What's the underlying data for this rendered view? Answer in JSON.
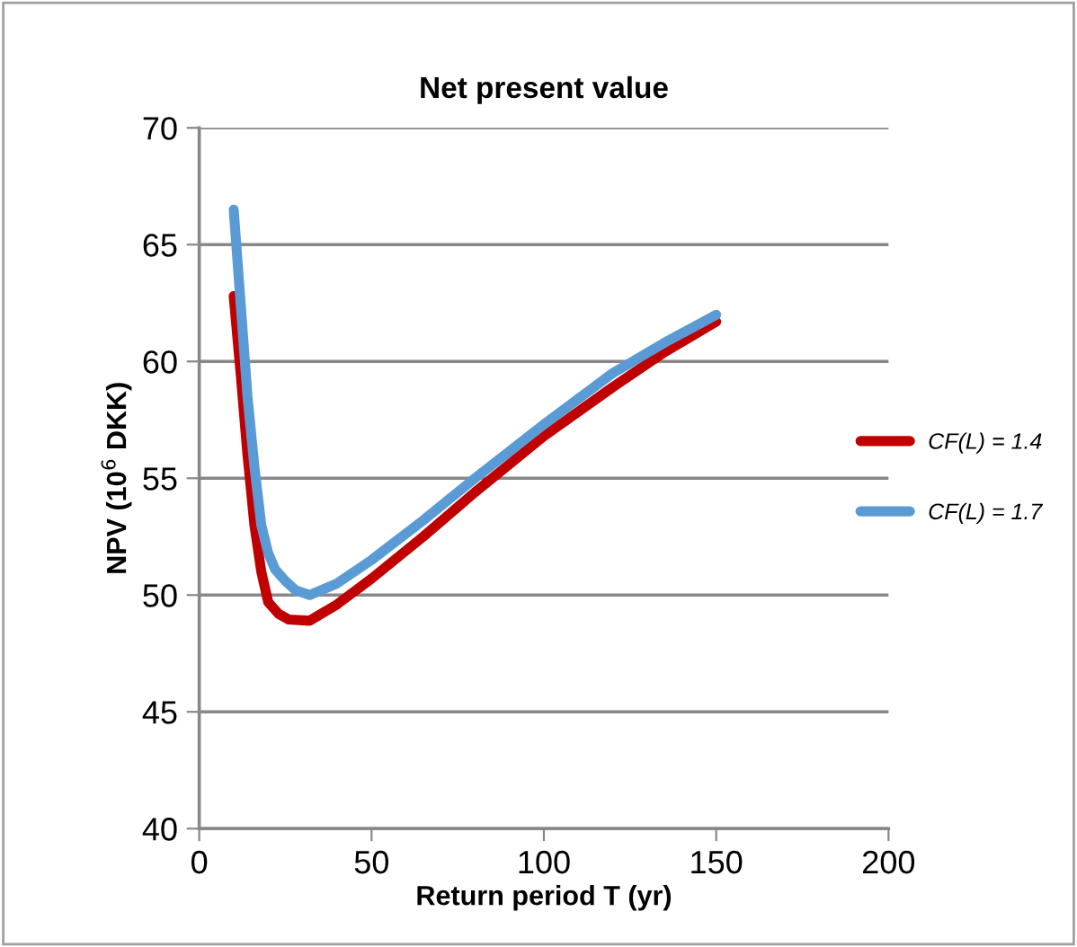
{
  "chart_data": {
    "type": "line",
    "title": "Net present value",
    "xlabel": "Return period T (yr)",
    "ylabel": "NPV (10$^{6}$ DKK)",
    "xlim": [
      0,
      200
    ],
    "xticks": [
      0,
      50,
      100,
      150,
      200
    ],
    "ylim": [
      40,
      70
    ],
    "yticks": [
      40,
      45,
      50,
      55,
      60,
      65,
      70
    ],
    "grid": "y",
    "legend": "right",
    "marker": "none",
    "line_style": "solid",
    "series": [
      {
        "name": "CF(L) = 1.4",
        "color": "#c00000",
        "x": [
          10,
          12,
          14,
          16,
          18,
          20,
          23,
          26,
          32,
          40,
          50,
          65,
          80,
          100,
          120,
          135,
          150
        ],
        "values": [
          62.8,
          59.5,
          56.0,
          53.0,
          51.0,
          49.7,
          49.2,
          48.95,
          48.9,
          49.6,
          50.7,
          52.5,
          54.4,
          56.8,
          58.9,
          60.4,
          61.7
        ]
      },
      {
        "name": "CF(L) = 1.7",
        "color": "#5b9bd5",
        "x": [
          10,
          12,
          14,
          16,
          18,
          20,
          22,
          25,
          28,
          32,
          40,
          50,
          65,
          80,
          100,
          120,
          135,
          150
        ],
        "values": [
          66.5,
          62.5,
          58.5,
          55.5,
          53.0,
          51.8,
          51.1,
          50.6,
          50.2,
          50.0,
          50.5,
          51.5,
          53.2,
          55.0,
          57.3,
          59.5,
          60.8,
          62.0
        ]
      }
    ]
  }
}
